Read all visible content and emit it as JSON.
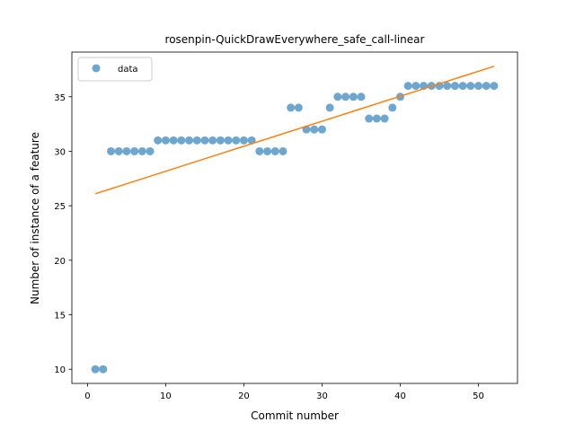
{
  "chart_data": {
    "type": "scatter",
    "title": "rosenpin-QuickDrawEverywhere_safe_call-linear",
    "xlabel": "Commit number",
    "ylabel": "Number of instance of a feature",
    "xlim": [
      -2,
      55
    ],
    "ylim": [
      8.7,
      39.1
    ],
    "xticks": [
      0,
      10,
      20,
      30,
      40,
      50
    ],
    "yticks": [
      10,
      15,
      20,
      25,
      30,
      35
    ],
    "grid": false,
    "legend": {
      "placement": "top-left",
      "entries": [
        "data"
      ]
    },
    "series": [
      {
        "name": "data",
        "kind": "scatter",
        "color": "#1f77b4",
        "x": [
          1,
          2,
          3,
          4,
          5,
          6,
          7,
          8,
          9,
          10,
          11,
          12,
          13,
          14,
          15,
          16,
          17,
          18,
          19,
          20,
          21,
          22,
          23,
          24,
          25,
          26,
          27,
          28,
          29,
          30,
          31,
          32,
          33,
          34,
          35,
          36,
          37,
          38,
          39,
          40,
          41,
          42,
          43,
          44,
          45,
          46,
          47,
          48,
          49,
          50,
          51,
          52
        ],
        "y": [
          10,
          10,
          30,
          30,
          30,
          30,
          30,
          30,
          31,
          31,
          31,
          31,
          31,
          31,
          31,
          31,
          31,
          31,
          31,
          31,
          31,
          30,
          30,
          30,
          30,
          34,
          34,
          32,
          32,
          32,
          34,
          35,
          35,
          35,
          35,
          33,
          33,
          33,
          34,
          35,
          36,
          36,
          36,
          36,
          36,
          36,
          36,
          36,
          36,
          36,
          36,
          36
        ]
      },
      {
        "kind": "line",
        "color": "#ff7f0e",
        "x": [
          1,
          52
        ],
        "y": [
          26.1,
          37.8
        ]
      }
    ]
  }
}
